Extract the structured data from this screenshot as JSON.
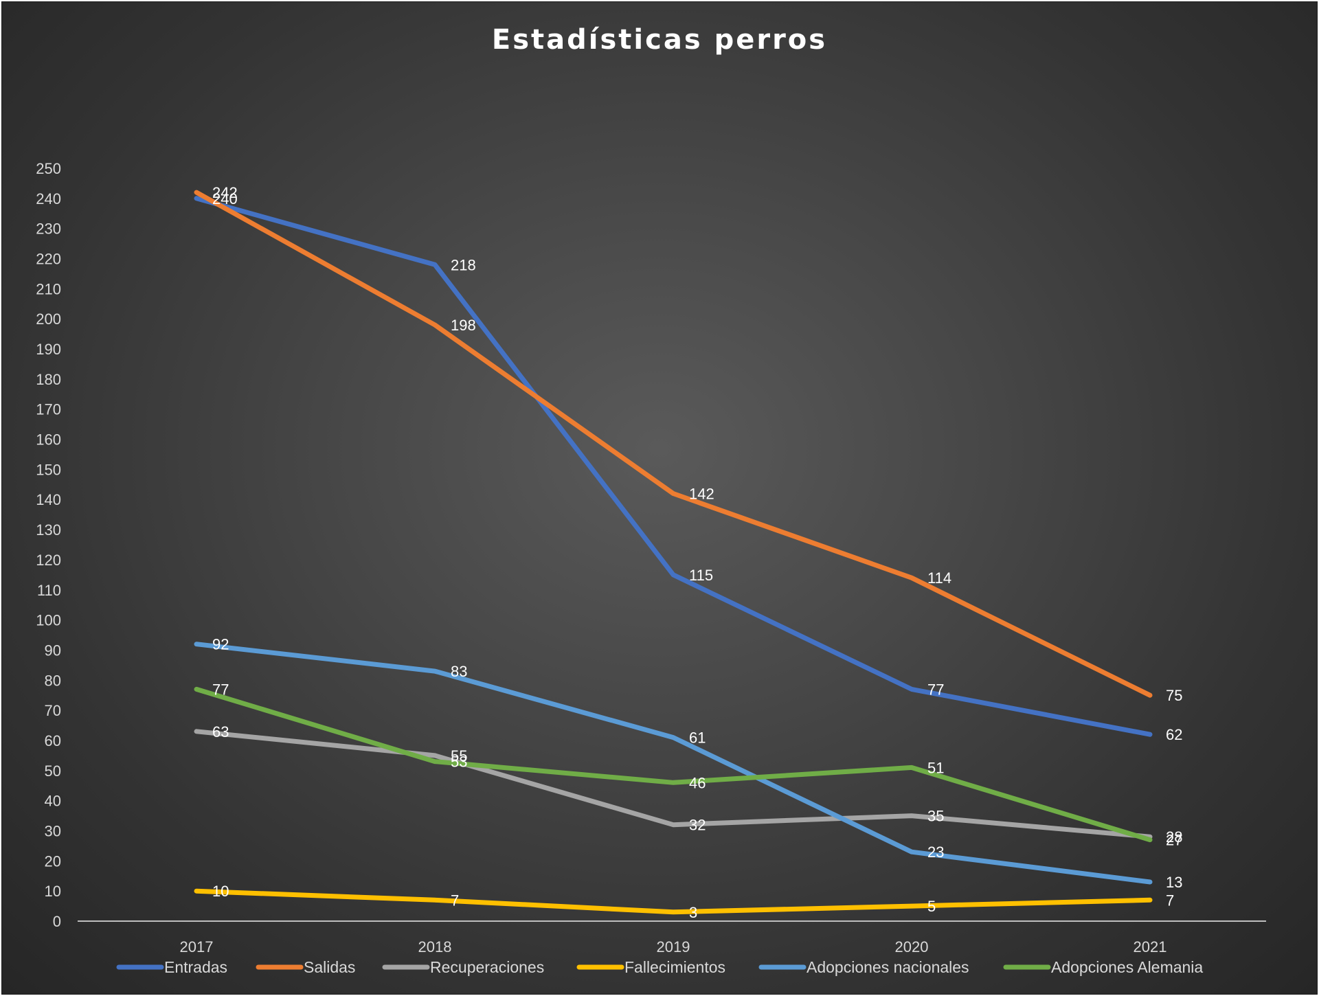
{
  "chart_data": {
    "type": "line",
    "title": "Estadísticas perros",
    "categories": [
      "2017",
      "2018",
      "2019",
      "2020",
      "2021"
    ],
    "y_ticks": [
      "0",
      "10",
      "20",
      "30",
      "40",
      "50",
      "60",
      "70",
      "80",
      "90",
      "100",
      "110",
      "120",
      "130",
      "140",
      "150",
      "160",
      "170",
      "180",
      "190",
      "200",
      "210",
      "220",
      "230",
      "240",
      "250"
    ],
    "ylim": [
      0,
      250
    ],
    "grid": false,
    "legend_position": "bottom",
    "series": [
      {
        "name": "Entradas",
        "color": "#4472c4",
        "values": [
          240,
          218,
          115,
          77,
          62
        ]
      },
      {
        "name": "Salidas",
        "color": "#ed7d31",
        "values": [
          242,
          198,
          142,
          114,
          75
        ]
      },
      {
        "name": "Recuperaciones",
        "color": "#a5a5a5",
        "values": [
          63,
          55,
          32,
          35,
          28
        ]
      },
      {
        "name": "Fallecimientos",
        "color": "#ffc000",
        "values": [
          10,
          7,
          3,
          5,
          7
        ]
      },
      {
        "name": "Adopciones nacionales",
        "color": "#5b9bd5",
        "values": [
          92,
          83,
          61,
          23,
          13
        ]
      },
      {
        "name": "Adopciones Alemania",
        "color": "#70ad47",
        "values": [
          77,
          53,
          46,
          51,
          27
        ]
      }
    ]
  }
}
